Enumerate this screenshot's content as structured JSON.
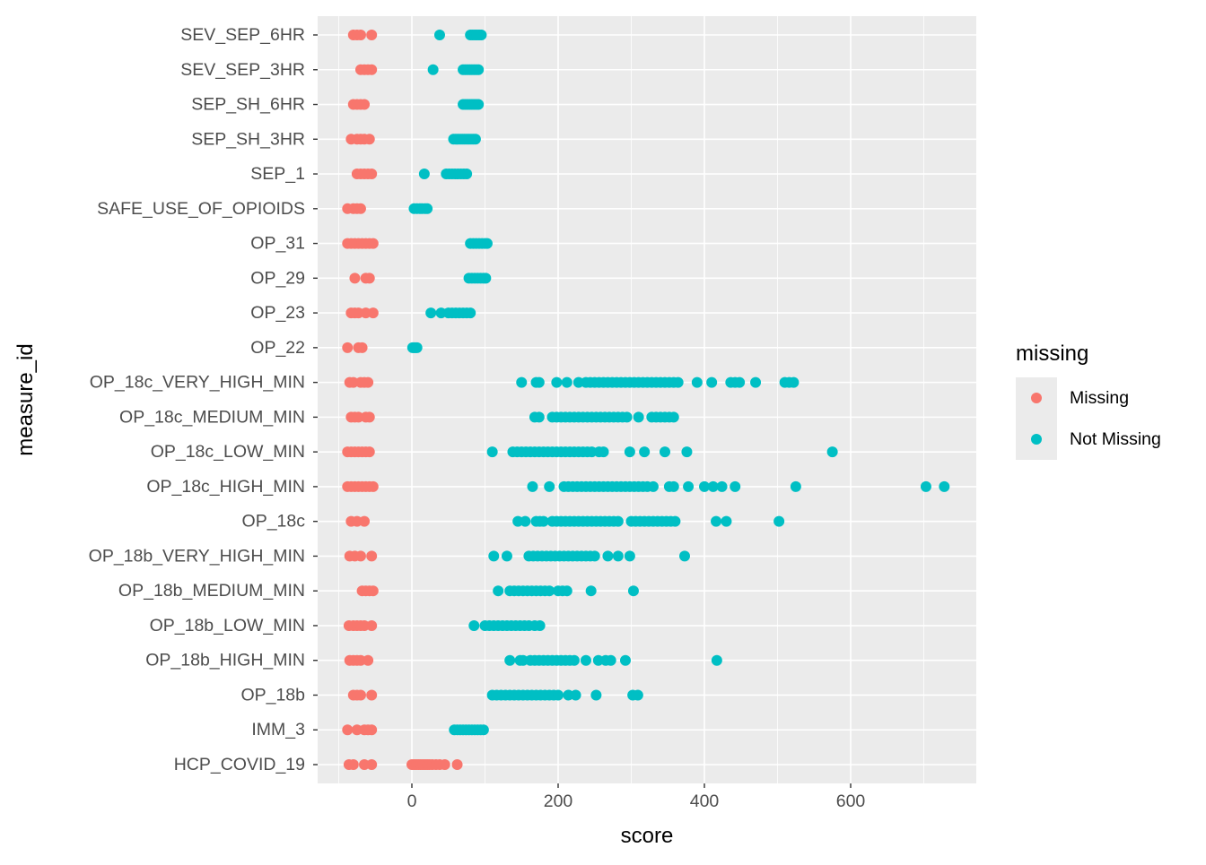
{
  "chart_data": {
    "type": "scatter",
    "xlabel": "score",
    "ylabel": "measure_id",
    "xlim": [
      -130,
      765
    ],
    "x_ticks": [
      0,
      200,
      400,
      600
    ],
    "x_tick_labels": [
      "0",
      "200",
      "400",
      "600"
    ],
    "grid": true,
    "legend_position": "right",
    "legend": {
      "title": "missing",
      "entries": [
        {
          "name": "Missing",
          "color": "#F8766D"
        },
        {
          "name": "Not Missing",
          "color": "#00BFC4"
        }
      ]
    },
    "categories": [
      "HCP_COVID_19",
      "IMM_3",
      "OP_18b",
      "OP_18b_HIGH_MIN",
      "OP_18b_LOW_MIN",
      "OP_18b_MEDIUM_MIN",
      "OP_18b_VERY_HIGH_MIN",
      "OP_18c",
      "OP_18c_HIGH_MIN",
      "OP_18c_LOW_MIN",
      "OP_18c_MEDIUM_MIN",
      "OP_18c_VERY_HIGH_MIN",
      "OP_22",
      "OP_23",
      "OP_29",
      "OP_31",
      "SAFE_USE_OF_OPIOIDS",
      "SEP_1",
      "SEP_SH_3HR",
      "SEP_SH_6HR",
      "SEV_SEP_3HR",
      "SEV_SEP_6HR"
    ],
    "series": [
      {
        "name": "Missing",
        "color": "#F8766D",
        "points": {
          "SEV_SEP_6HR": [
            -80,
            -75,
            -70,
            -55
          ],
          "SEV_SEP_3HR": [
            -70,
            -65,
            -60,
            -55
          ],
          "SEP_SH_6HR": [
            -80,
            -75,
            -70,
            -65
          ],
          "SEP_SH_3HR": [
            -83,
            -75,
            -70,
            -65,
            -58
          ],
          "SEP_1": [
            -75,
            -70,
            -65,
            -60,
            -55
          ],
          "SAFE_USE_OF_OPIOIDS": [
            -88,
            -80,
            -75,
            -70
          ],
          "OP_31": [
            -88,
            -83,
            -78,
            -73,
            -68,
            -63,
            -58,
            -53
          ],
          "OP_29": [
            -78,
            -63,
            -58
          ],
          "OP_23": [
            -83,
            -78,
            -73,
            -63,
            -53
          ],
          "OP_22": [
            -88,
            -73,
            -68
          ],
          "OP_18c_VERY_HIGH_MIN": [
            -85,
            -80,
            -70,
            -65,
            -60
          ],
          "OP_18c_MEDIUM_MIN": [
            -83,
            -78,
            -73,
            -63,
            -58
          ],
          "OP_18c_LOW_MIN": [
            -88,
            -83,
            -78,
            -73,
            -68,
            -63,
            -58
          ],
          "OP_18c_HIGH_MIN": [
            -88,
            -83,
            -78,
            -73,
            -68,
            -63,
            -58,
            -53
          ],
          "OP_18c": [
            -83,
            -75,
            -65
          ],
          "OP_18b_VERY_HIGH_MIN": [
            -85,
            -78,
            -70,
            -55
          ],
          "OP_18b_MEDIUM_MIN": [
            -68,
            -63,
            -58,
            -53
          ],
          "OP_18b_LOW_MIN": [
            -86,
            -80,
            -75,
            -70,
            -65,
            -55
          ],
          "OP_18b_HIGH_MIN": [
            -85,
            -80,
            -75,
            -70,
            -60
          ],
          "OP_18b": [
            -80,
            -75,
            -70,
            -55
          ],
          "IMM_3": [
            -88,
            -75,
            -65,
            -60,
            -55
          ],
          "HCP_COVID_19": [
            -86,
            -80,
            -65,
            -55,
            0,
            3,
            6,
            9,
            12,
            15,
            18,
            21,
            24,
            28,
            33,
            38,
            45,
            62
          ]
        }
      },
      {
        "name": "Not Missing",
        "color": "#00BFC4",
        "points": {
          "SEV_SEP_6HR": [
            38,
            80,
            83,
            86,
            89,
            92,
            95
          ],
          "SEV_SEP_3HR": [
            29,
            70,
            73,
            76,
            79,
            82,
            85,
            88,
            91
          ],
          "SEP_SH_6HR": [
            70,
            73,
            76,
            79,
            82,
            85,
            88,
            91
          ],
          "SEP_SH_3HR": [
            57,
            60,
            63,
            66,
            69,
            72,
            75,
            78,
            81,
            84,
            87
          ],
          "SEP_1": [
            17,
            47,
            51,
            55,
            59,
            63,
            67,
            71,
            75
          ],
          "SAFE_USE_OF_OPIOIDS": [
            3,
            7,
            11,
            14,
            18,
            21
          ],
          "OP_31": [
            80,
            84,
            88,
            92,
            96,
            100,
            103
          ],
          "OP_29": [
            78,
            82,
            86,
            90,
            94,
            98,
            101
          ],
          "OP_23": [
            26,
            40,
            50,
            55,
            60,
            65,
            70,
            75,
            80
          ],
          "OP_22": [
            1,
            3,
            5,
            7
          ],
          "OP_18c_VERY_HIGH_MIN": [
            150,
            170,
            174,
            198,
            212,
            228,
            238,
            244,
            250,
            256,
            262,
            268,
            274,
            280,
            286,
            292,
            298,
            304,
            310,
            316,
            322,
            328,
            334,
            340,
            346,
            352,
            358,
            364,
            390,
            410,
            436,
            442,
            448,
            470,
            510,
            516,
            522
          ],
          "OP_18c_MEDIUM_MIN": [
            168,
            174,
            192,
            198,
            204,
            210,
            216,
            222,
            228,
            234,
            240,
            246,
            252,
            258,
            264,
            270,
            276,
            282,
            288,
            294,
            310,
            328,
            334,
            340,
            346,
            352,
            358
          ],
          "OP_18c_LOW_MIN": [
            110,
            138,
            144,
            150,
            156,
            162,
            168,
            174,
            180,
            186,
            192,
            198,
            204,
            210,
            216,
            222,
            228,
            234,
            240,
            246,
            256,
            262,
            298,
            318,
            346,
            376,
            575
          ],
          "OP_18c_HIGH_MIN": [
            165,
            188,
            208,
            214,
            220,
            226,
            232,
            238,
            244,
            250,
            256,
            262,
            268,
            274,
            280,
            286,
            292,
            298,
            304,
            310,
            316,
            322,
            330,
            352,
            358,
            378,
            400,
            412,
            424,
            442,
            525,
            703,
            728
          ],
          "OP_18c": [
            145,
            155,
            170,
            175,
            180,
            192,
            198,
            204,
            210,
            216,
            222,
            228,
            234,
            240,
            246,
            252,
            258,
            264,
            270,
            276,
            282,
            300,
            306,
            312,
            318,
            324,
            330,
            336,
            342,
            348,
            354,
            360,
            416,
            430,
            502
          ],
          "OP_18b_VERY_HIGH_MIN": [
            112,
            130,
            160,
            166,
            172,
            178,
            184,
            190,
            196,
            202,
            208,
            214,
            220,
            226,
            232,
            238,
            244,
            250,
            268,
            282,
            298,
            373
          ],
          "OP_18b_MEDIUM_MIN": [
            118,
            134,
            140,
            146,
            152,
            158,
            164,
            170,
            176,
            182,
            188,
            200,
            206,
            212,
            245,
            303
          ],
          "OP_18b_LOW_MIN": [
            85,
            100,
            106,
            112,
            118,
            124,
            130,
            136,
            142,
            148,
            154,
            160,
            168,
            175
          ],
          "OP_18b_HIGH_MIN": [
            134,
            148,
            152,
            162,
            168,
            174,
            180,
            186,
            192,
            198,
            204,
            210,
            216,
            222,
            238,
            255,
            265,
            272,
            292,
            417
          ],
          "OP_18b": [
            110,
            116,
            122,
            128,
            134,
            140,
            146,
            152,
            158,
            164,
            170,
            176,
            182,
            188,
            194,
            200,
            214,
            224,
            252,
            302,
            309
          ],
          "IMM_3": [
            58,
            62,
            66,
            70,
            74,
            78,
            82,
            86,
            90,
            94,
            98
          ],
          "HCP_COVID_19": []
        }
      }
    ]
  }
}
